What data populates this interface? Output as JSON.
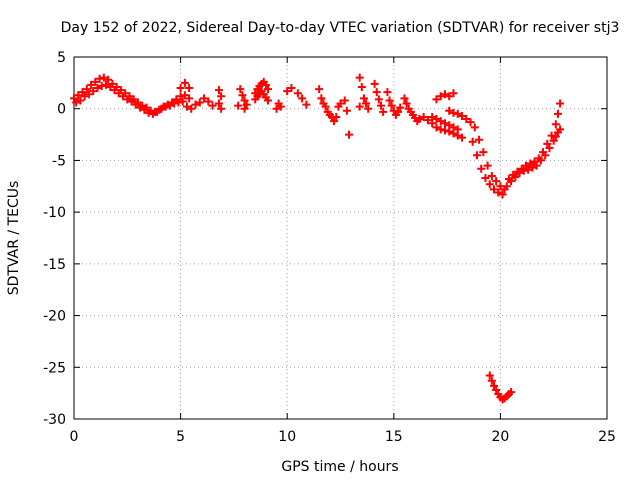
{
  "chart_data": {
    "type": "scatter",
    "title": "Day 152 of 2022, Sidereal Day-to-day VTEC variation (SDTVAR) for receiver stj3",
    "xlabel": "GPS time / hours",
    "ylabel": "SDTVAR / TECUs",
    "xlim": [
      0,
      25
    ],
    "ylim": [
      -30,
      5
    ],
    "xticks": [
      0,
      5,
      10,
      15,
      20,
      25
    ],
    "yticks": [
      5,
      0,
      -5,
      -10,
      -15,
      -20,
      -25,
      -30
    ],
    "grid": true,
    "marker": "+",
    "color": "#ff0000",
    "series": [
      {
        "name": "SDTVAR",
        "points": [
          [
            0.0,
            1.0
          ],
          [
            0.2,
            1.3
          ],
          [
            0.4,
            1.6
          ],
          [
            0.6,
            1.9
          ],
          [
            0.8,
            2.3
          ],
          [
            1.0,
            2.6
          ],
          [
            1.2,
            2.9
          ],
          [
            1.4,
            3.0
          ],
          [
            1.6,
            2.8
          ],
          [
            1.8,
            2.4
          ],
          [
            2.0,
            2.1
          ],
          [
            2.2,
            1.8
          ],
          [
            2.4,
            1.5
          ],
          [
            2.6,
            1.2
          ],
          [
            2.8,
            0.9
          ],
          [
            3.0,
            0.6
          ],
          [
            3.2,
            0.3
          ],
          [
            3.4,
            0.1
          ],
          [
            3.6,
            -0.2
          ],
          [
            3.8,
            -0.3
          ],
          [
            4.0,
            -0.1
          ],
          [
            4.2,
            0.2
          ],
          [
            4.4,
            0.4
          ],
          [
            4.6,
            0.6
          ],
          [
            4.8,
            0.9
          ],
          [
            5.0,
            1.2
          ],
          [
            5.2,
            1.3
          ],
          [
            5.4,
            1.0
          ],
          [
            0.1,
            0.6
          ],
          [
            0.3,
            0.8
          ],
          [
            0.5,
            1.2
          ],
          [
            0.7,
            1.4
          ],
          [
            0.9,
            1.7
          ],
          [
            1.1,
            2.0
          ],
          [
            1.3,
            2.2
          ],
          [
            1.5,
            2.3
          ],
          [
            1.7,
            2.1
          ],
          [
            1.9,
            1.8
          ],
          [
            2.1,
            1.5
          ],
          [
            2.3,
            1.2
          ],
          [
            2.5,
            0.9
          ],
          [
            2.7,
            0.7
          ],
          [
            2.9,
            0.4
          ],
          [
            3.1,
            0.1
          ],
          [
            3.3,
            -0.1
          ],
          [
            3.5,
            -0.4
          ],
          [
            3.7,
            -0.5
          ],
          [
            3.9,
            -0.3
          ],
          [
            4.1,
            0.0
          ],
          [
            4.3,
            0.2
          ],
          [
            4.5,
            0.3
          ],
          [
            4.7,
            0.5
          ],
          [
            4.9,
            0.6
          ],
          [
            5.1,
            0.7
          ],
          [
            5.3,
            0.2
          ],
          [
            5.5,
            0.0
          ],
          [
            5.7,
            0.4
          ],
          [
            5.9,
            0.6
          ],
          [
            6.1,
            1.0
          ],
          [
            6.3,
            0.7
          ],
          [
            6.5,
            0.3
          ],
          [
            5.0,
            2.0
          ],
          [
            5.2,
            2.5
          ],
          [
            5.4,
            2.0
          ],
          [
            6.8,
            1.8
          ],
          [
            6.9,
            1.2
          ],
          [
            6.8,
            0.5
          ],
          [
            6.9,
            0.0
          ],
          [
            7.8,
            1.9
          ],
          [
            7.9,
            1.3
          ],
          [
            8.0,
            0.8
          ],
          [
            8.1,
            0.4
          ],
          [
            7.7,
            0.3
          ],
          [
            8.0,
            0.0
          ],
          [
            8.5,
            1.5
          ],
          [
            8.6,
            1.9
          ],
          [
            8.7,
            2.2
          ],
          [
            8.8,
            2.4
          ],
          [
            8.9,
            2.6
          ],
          [
            9.0,
            2.3
          ],
          [
            9.1,
            1.9
          ],
          [
            8.5,
            0.9
          ],
          [
            8.6,
            1.2
          ],
          [
            8.7,
            1.4
          ],
          [
            8.8,
            1.7
          ],
          [
            8.9,
            1.4
          ],
          [
            9.0,
            1.1
          ],
          [
            9.1,
            0.8
          ],
          [
            9.5,
            0.0
          ],
          [
            9.6,
            0.5
          ],
          [
            9.7,
            0.2
          ],
          [
            10.0,
            1.7
          ],
          [
            10.2,
            2.0
          ],
          [
            10.5,
            1.5
          ],
          [
            10.7,
            1.0
          ],
          [
            10.9,
            0.4
          ],
          [
            11.5,
            1.9
          ],
          [
            11.6,
            1.0
          ],
          [
            11.7,
            0.5
          ],
          [
            11.8,
            0.2
          ],
          [
            11.9,
            -0.3
          ],
          [
            12.0,
            -0.6
          ],
          [
            12.1,
            -0.8
          ],
          [
            12.2,
            -1.2
          ],
          [
            12.3,
            -0.8
          ],
          [
            12.4,
            0.2
          ],
          [
            12.5,
            0.5
          ],
          [
            12.7,
            0.8
          ],
          [
            12.9,
            -2.5
          ],
          [
            12.8,
            -0.2
          ],
          [
            13.4,
            3.0
          ],
          [
            13.5,
            2.1
          ],
          [
            13.6,
            1.0
          ],
          [
            13.7,
            0.5
          ],
          [
            13.8,
            0.0
          ],
          [
            13.4,
            0.2
          ],
          [
            14.1,
            2.4
          ],
          [
            14.2,
            1.6
          ],
          [
            14.3,
            0.9
          ],
          [
            14.4,
            0.3
          ],
          [
            14.5,
            -0.3
          ],
          [
            14.7,
            1.6
          ],
          [
            14.8,
            0.8
          ],
          [
            14.9,
            0.3
          ],
          [
            15.0,
            -0.2
          ],
          [
            15.1,
            -0.6
          ],
          [
            15.2,
            -0.3
          ],
          [
            15.3,
            0.1
          ],
          [
            15.5,
            1.0
          ],
          [
            15.6,
            0.5
          ],
          [
            15.7,
            0.0
          ],
          [
            15.8,
            -0.3
          ],
          [
            15.9,
            -0.6
          ],
          [
            16.0,
            -0.9
          ],
          [
            16.1,
            -1.2
          ],
          [
            16.2,
            -1.0
          ],
          [
            16.4,
            -0.8
          ],
          [
            16.6,
            -1.1
          ],
          [
            16.8,
            -1.4
          ],
          [
            17.0,
            0.9
          ],
          [
            17.2,
            1.2
          ],
          [
            17.4,
            1.4
          ],
          [
            17.6,
            1.2
          ],
          [
            17.8,
            1.5
          ],
          [
            16.8,
            -0.8
          ],
          [
            17.0,
            -1.0
          ],
          [
            17.2,
            -1.2
          ],
          [
            17.4,
            -1.4
          ],
          [
            17.6,
            -1.6
          ],
          [
            17.8,
            -1.8
          ],
          [
            18.0,
            -2.0
          ],
          [
            17.0,
            -1.8
          ],
          [
            17.2,
            -2.0
          ],
          [
            17.4,
            -2.1
          ],
          [
            17.6,
            -2.2
          ],
          [
            17.8,
            -2.4
          ],
          [
            18.0,
            -2.6
          ],
          [
            18.2,
            -2.8
          ],
          [
            17.6,
            -0.2
          ],
          [
            17.8,
            -0.4
          ],
          [
            18.0,
            -0.5
          ],
          [
            18.2,
            -0.7
          ],
          [
            18.4,
            -1.0
          ],
          [
            18.6,
            -1.3
          ],
          [
            18.8,
            -1.8
          ],
          [
            19.0,
            -3.0
          ],
          [
            19.2,
            -4.2
          ],
          [
            19.4,
            -5.5
          ],
          [
            19.6,
            -6.5
          ],
          [
            19.8,
            -7.0
          ],
          [
            20.0,
            -7.5
          ],
          [
            20.2,
            -7.8
          ],
          [
            20.1,
            -8.3
          ],
          [
            18.7,
            -3.2
          ],
          [
            18.9,
            -4.5
          ],
          [
            19.1,
            -5.8
          ],
          [
            19.3,
            -6.7
          ],
          [
            19.5,
            -7.3
          ],
          [
            19.7,
            -7.8
          ],
          [
            19.9,
            -8.1
          ],
          [
            20.3,
            -7.5
          ],
          [
            20.5,
            -7.0
          ],
          [
            20.7,
            -6.6
          ],
          [
            20.9,
            -6.2
          ],
          [
            21.1,
            -6.0
          ],
          [
            21.3,
            -5.9
          ],
          [
            21.5,
            -5.7
          ],
          [
            21.7,
            -5.5
          ],
          [
            20.4,
            -6.8
          ],
          [
            20.6,
            -6.4
          ],
          [
            20.8,
            -6.1
          ],
          [
            21.0,
            -5.8
          ],
          [
            21.2,
            -5.5
          ],
          [
            21.4,
            -5.3
          ],
          [
            21.6,
            -5.1
          ],
          [
            21.8,
            -4.8
          ],
          [
            22.0,
            -4.2
          ],
          [
            22.2,
            -3.4
          ],
          [
            22.4,
            -2.6
          ],
          [
            22.6,
            -1.5
          ],
          [
            22.7,
            -0.5
          ],
          [
            22.8,
            0.5
          ],
          [
            21.9,
            -5.0
          ],
          [
            22.1,
            -4.5
          ],
          [
            22.3,
            -3.8
          ],
          [
            22.5,
            -3.1
          ],
          [
            22.6,
            -2.7
          ],
          [
            22.7,
            -2.3
          ],
          [
            22.8,
            -2.0
          ],
          [
            19.5,
            -25.8
          ],
          [
            19.6,
            -26.3
          ],
          [
            19.7,
            -26.8
          ],
          [
            19.8,
            -27.2
          ],
          [
            19.9,
            -27.6
          ],
          [
            20.0,
            -27.9
          ],
          [
            20.1,
            -28.1
          ],
          [
            20.2,
            -28.0
          ],
          [
            20.3,
            -27.8
          ],
          [
            20.4,
            -27.6
          ],
          [
            20.5,
            -27.4
          ]
        ]
      }
    ]
  }
}
